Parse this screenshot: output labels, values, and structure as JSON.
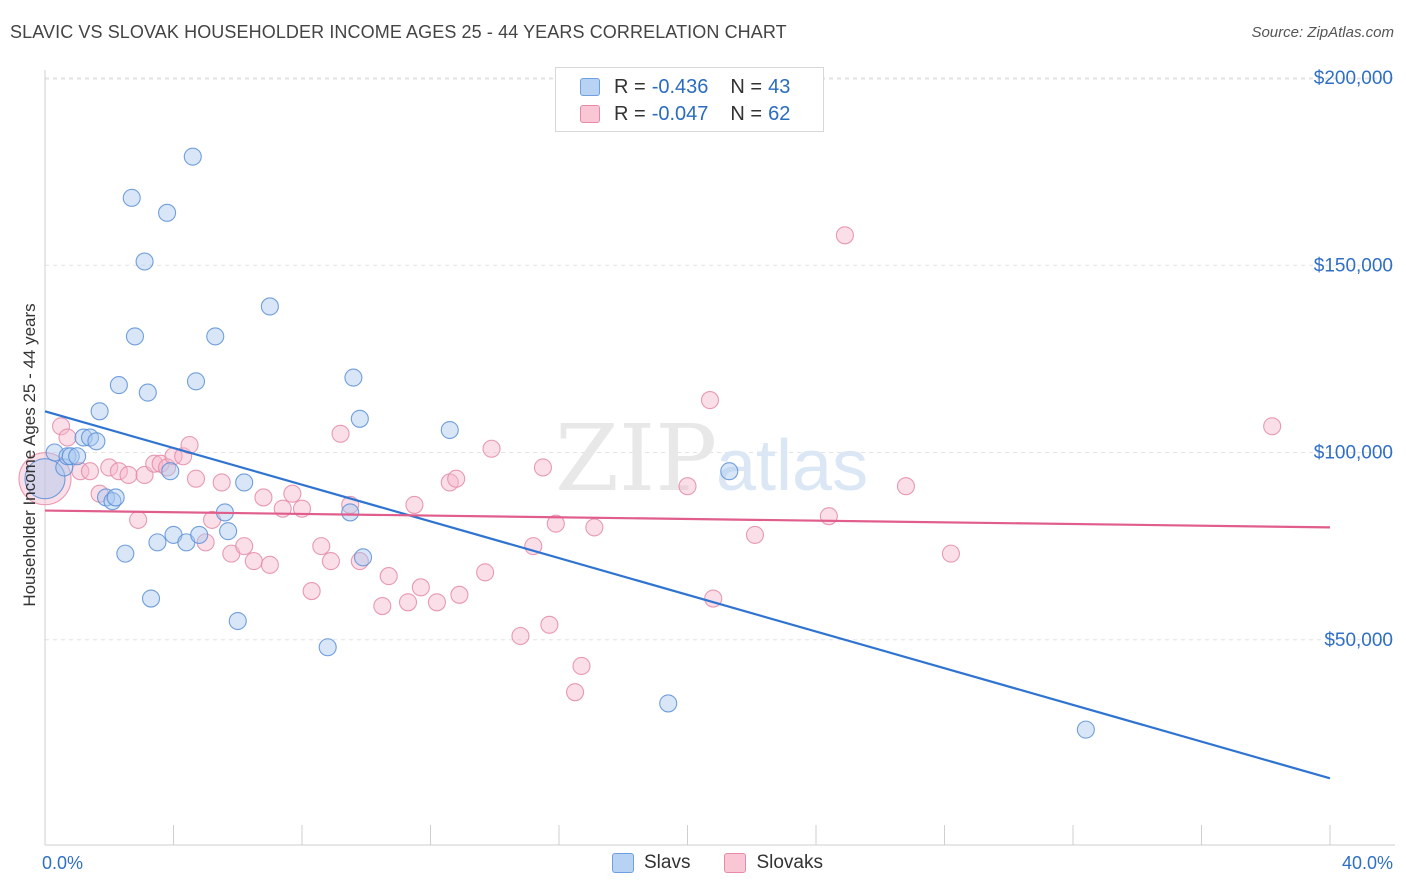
{
  "title": "SLAVIC VS SLOVAK HOUSEHOLDER INCOME AGES 25 - 44 YEARS CORRELATION CHART",
  "source": "Source: ZipAtlas.com",
  "watermark": {
    "part1": "ZIP",
    "part2": "atlas"
  },
  "legend_stats": [
    {
      "r_label": "R = ",
      "r_value": "-0.436",
      "n_label": "N = ",
      "n_value": "43",
      "color": "#a9c8f0",
      "border": "#6fa0de"
    },
    {
      "r_label": "R = ",
      "r_value": "-0.047",
      "n_label": "N = ",
      "n_value": "62",
      "color": "#f7b8cc",
      "border": "#e889a8"
    }
  ],
  "colors": {
    "slavs_fill": "#a9c8f0",
    "slavs_stroke": "#5b8fd6",
    "slavs_line": "#2f74d0",
    "slovaks_fill": "#f7b8cc",
    "slovaks_stroke": "#e48aa8",
    "slovaks_line": "#e05d8c",
    "axis_text": "#2f6fc4"
  },
  "chart_data": {
    "type": "scatter",
    "title": "SLAVIC VS SLOVAK HOUSEHOLDER INCOME AGES 25 - 44 YEARS CORRELATION CHART",
    "xlabel": "",
    "ylabel": "Householder Income Ages 25 - 44 years",
    "xlim": [
      0,
      40
    ],
    "ylim": [
      0,
      210000
    ],
    "x_tick_labels": [
      "0.0%",
      "40.0%"
    ],
    "y_ticks": [
      50000,
      100000,
      150000,
      200000
    ],
    "y_tick_labels": [
      "$50,000",
      "$100,000",
      "$150,000",
      "$200,000"
    ],
    "grid": true,
    "legend_position": "bottom-center",
    "series": [
      {
        "name": "Slavs",
        "trend": {
          "x": [
            0,
            40
          ],
          "y": [
            111000,
            13000
          ]
        },
        "points": [
          [
            0.0,
            93000,
            1
          ],
          [
            0.3,
            100000,
            0
          ],
          [
            0.6,
            96000,
            0
          ],
          [
            0.7,
            99000,
            0
          ],
          [
            0.8,
            99000,
            0
          ],
          [
            1.0,
            99000,
            0
          ],
          [
            1.2,
            104000,
            0
          ],
          [
            1.4,
            104000,
            0
          ],
          [
            1.6,
            103000,
            0
          ],
          [
            1.7,
            111000,
            0
          ],
          [
            1.9,
            88000,
            0
          ],
          [
            2.1,
            87000,
            0
          ],
          [
            2.2,
            88000,
            0
          ],
          [
            2.3,
            118000,
            0
          ],
          [
            2.5,
            73000,
            0
          ],
          [
            2.7,
            168000,
            0
          ],
          [
            2.8,
            131000,
            0
          ],
          [
            3.1,
            151000,
            0
          ],
          [
            3.2,
            116000,
            0
          ],
          [
            3.3,
            61000,
            0
          ],
          [
            3.5,
            76000,
            0
          ],
          [
            3.8,
            164000,
            0
          ],
          [
            3.9,
            95000,
            0
          ],
          [
            4.0,
            78000,
            0
          ],
          [
            4.4,
            76000,
            0
          ],
          [
            4.6,
            179000,
            0
          ],
          [
            4.7,
            119000,
            0
          ],
          [
            4.8,
            78000,
            0
          ],
          [
            5.3,
            131000,
            0
          ],
          [
            5.6,
            84000,
            0
          ],
          [
            5.7,
            79000,
            0
          ],
          [
            6.0,
            55000,
            0
          ],
          [
            6.2,
            92000,
            0
          ],
          [
            7.0,
            139000,
            0
          ],
          [
            8.8,
            48000,
            0
          ],
          [
            9.5,
            84000,
            0
          ],
          [
            9.6,
            120000,
            0
          ],
          [
            9.8,
            109000,
            0
          ],
          [
            9.9,
            72000,
            0
          ],
          [
            12.6,
            106000,
            0
          ],
          [
            19.4,
            33000,
            0
          ],
          [
            21.3,
            95000,
            0
          ],
          [
            32.4,
            26000,
            0
          ]
        ]
      },
      {
        "name": "Slovaks",
        "trend": {
          "x": [
            0,
            40
          ],
          "y": [
            84500,
            80000
          ]
        },
        "points": [
          [
            0.0,
            93000,
            2
          ],
          [
            0.5,
            107000,
            0
          ],
          [
            0.7,
            104000,
            0
          ],
          [
            1.1,
            95000,
            0
          ],
          [
            1.4,
            95000,
            0
          ],
          [
            1.7,
            89000,
            0
          ],
          [
            2.0,
            96000,
            0
          ],
          [
            2.3,
            95000,
            0
          ],
          [
            2.6,
            94000,
            0
          ],
          [
            2.9,
            82000,
            0
          ],
          [
            3.1,
            94000,
            0
          ],
          [
            3.4,
            97000,
            0
          ],
          [
            3.6,
            97000,
            0
          ],
          [
            3.8,
            96000,
            0
          ],
          [
            4.0,
            99000,
            0
          ],
          [
            4.3,
            99000,
            0
          ],
          [
            4.5,
            102000,
            0
          ],
          [
            4.7,
            93000,
            0
          ],
          [
            5.0,
            76000,
            0
          ],
          [
            5.2,
            82000,
            0
          ],
          [
            5.5,
            92000,
            0
          ],
          [
            5.8,
            73000,
            0
          ],
          [
            6.2,
            75000,
            0
          ],
          [
            6.5,
            71000,
            0
          ],
          [
            6.8,
            88000,
            0
          ],
          [
            7.0,
            70000,
            0
          ],
          [
            7.4,
            85000,
            0
          ],
          [
            7.7,
            89000,
            0
          ],
          [
            8.0,
            85000,
            0
          ],
          [
            8.3,
            63000,
            0
          ],
          [
            8.6,
            75000,
            0
          ],
          [
            8.9,
            71000,
            0
          ],
          [
            9.2,
            105000,
            0
          ],
          [
            9.5,
            86000,
            0
          ],
          [
            9.8,
            71000,
            0
          ],
          [
            10.5,
            59000,
            0
          ],
          [
            10.7,
            67000,
            0
          ],
          [
            11.3,
            60000,
            0
          ],
          [
            11.5,
            86000,
            0
          ],
          [
            11.7,
            64000,
            0
          ],
          [
            12.2,
            60000,
            0
          ],
          [
            12.6,
            92000,
            0
          ],
          [
            12.8,
            93000,
            0
          ],
          [
            12.9,
            62000,
            0
          ],
          [
            13.7,
            68000,
            0
          ],
          [
            13.9,
            101000,
            0
          ],
          [
            14.8,
            51000,
            0
          ],
          [
            15.2,
            75000,
            0
          ],
          [
            15.5,
            96000,
            0
          ],
          [
            15.7,
            54000,
            0
          ],
          [
            15.9,
            81000,
            0
          ],
          [
            16.5,
            36000,
            0
          ],
          [
            16.7,
            43000,
            0
          ],
          [
            17.1,
            80000,
            0
          ],
          [
            20.0,
            91000,
            0
          ],
          [
            20.7,
            114000,
            0
          ],
          [
            20.8,
            61000,
            0
          ],
          [
            22.1,
            78000,
            0
          ],
          [
            24.4,
            83000,
            0
          ],
          [
            24.9,
            158000,
            0
          ],
          [
            26.8,
            91000,
            0
          ],
          [
            28.2,
            73000,
            0
          ],
          [
            38.2,
            107000,
            0
          ]
        ]
      }
    ]
  }
}
